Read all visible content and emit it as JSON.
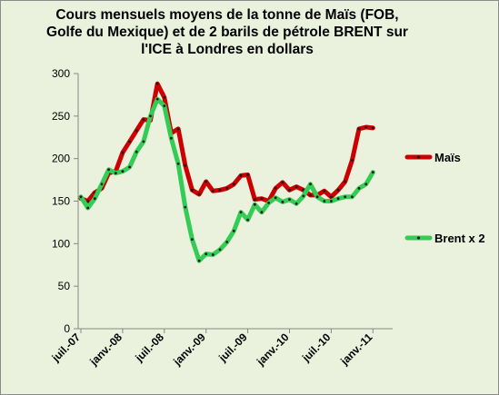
{
  "chart_data": {
    "type": "line",
    "title_lines": [
      "Cours mensuels moyens de la tonne de Maïs (FOB,",
      "Golfe du Mexique) et de 2 barils  de pétrole BRENT sur",
      "l'ICE à Londres en dollars"
    ],
    "xlabel": "",
    "ylabel": "",
    "ylim": [
      0,
      300
    ],
    "yticks": [
      0,
      50,
      100,
      150,
      200,
      250,
      300
    ],
    "x_tick_labels": [
      "juil.-07",
      "janv.-08",
      "juil.-08",
      "janv.-09",
      "juil.-09",
      "janv.-10",
      "juil.-10",
      "janv.-11"
    ],
    "x_months_start": "2007-07",
    "grid": false,
    "legend_position": "right",
    "series": [
      {
        "name": "Maïs",
        "color": "#cc0000",
        "values": [
          153,
          150,
          160,
          165,
          183,
          185,
          207,
          220,
          233,
          246,
          245,
          288,
          272,
          230,
          235,
          192,
          163,
          158,
          173,
          162,
          163,
          165,
          170,
          180,
          181,
          152,
          153,
          150,
          165,
          172,
          163,
          167,
          163,
          157,
          157,
          162,
          155,
          163,
          173,
          198,
          235,
          237,
          236
        ]
      },
      {
        "name": "Brent x 2",
        "color": "#33cc55",
        "values": [
          155,
          142,
          153,
          170,
          187,
          183,
          185,
          190,
          208,
          220,
          250,
          270,
          262,
          224,
          194,
          143,
          105,
          80,
          88,
          87,
          93,
          102,
          115,
          137,
          128,
          146,
          137,
          148,
          154,
          149,
          152,
          147,
          156,
          170,
          155,
          150,
          150,
          153,
          155,
          155,
          165,
          170,
          184
        ]
      }
    ]
  }
}
